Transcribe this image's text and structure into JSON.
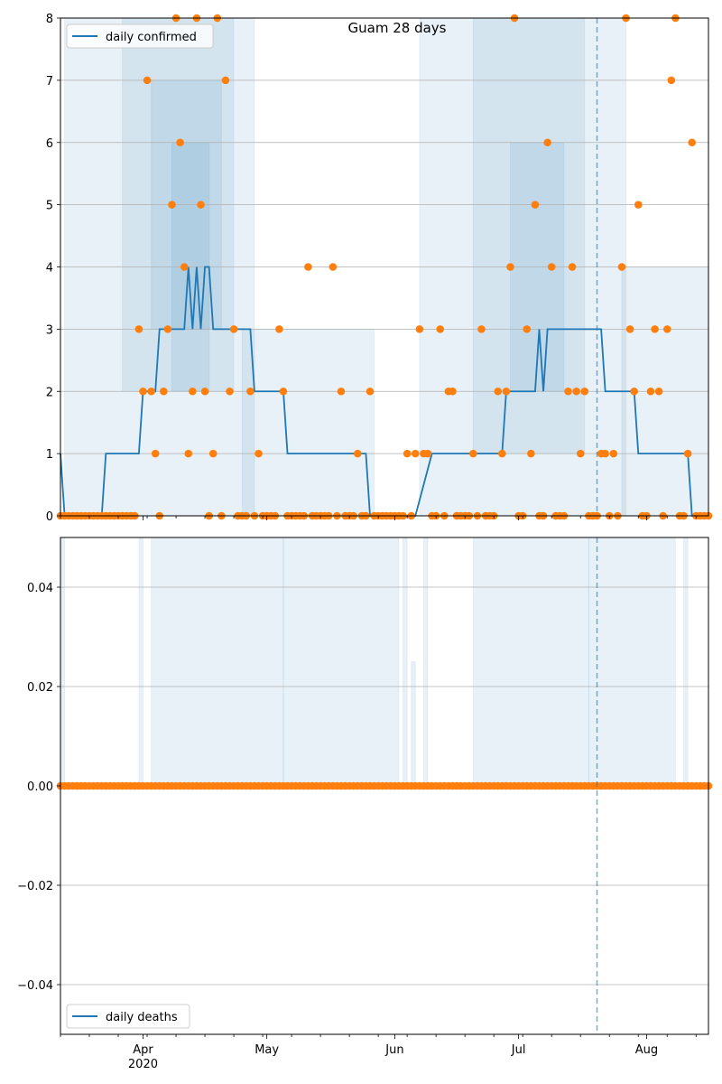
{
  "chart_data": [
    {
      "type": "line",
      "title": "Guam 28 days",
      "legend": {
        "label": "daily confirmed",
        "placement": "top-left"
      },
      "ylim": [
        0,
        8
      ],
      "yticks": [
        "0",
        "1",
        "2",
        "3",
        "4",
        "5",
        "6",
        "7",
        "8"
      ],
      "grid": true,
      "x_start": "2020-03-12",
      "x_end": "2020-08-16",
      "highlight_date": "2020-07-20",
      "colors": {
        "line": "#1f77b4",
        "points": "#ff7f0e",
        "band": "#1f77b4"
      },
      "series": [
        {
          "name": "daily confirmed",
          "kind": "line",
          "points": [
            [
              "2020-03-12",
              1
            ],
            [
              "2020-03-13",
              0
            ],
            [
              "2020-03-22",
              0
            ],
            [
              "2020-03-23",
              1
            ],
            [
              "2020-03-31",
              1
            ],
            [
              "2020-04-01",
              2
            ],
            [
              "2020-04-04",
              2
            ],
            [
              "2020-04-05",
              3
            ],
            [
              "2020-04-11",
              3
            ],
            [
              "2020-04-12",
              4
            ],
            [
              "2020-04-13",
              3
            ],
            [
              "2020-04-14",
              4
            ],
            [
              "2020-04-15",
              3
            ],
            [
              "2020-04-16",
              4
            ],
            [
              "2020-04-17",
              4
            ],
            [
              "2020-04-18",
              3
            ],
            [
              "2020-04-27",
              3
            ],
            [
              "2020-04-28",
              2
            ],
            [
              "2020-05-05",
              2
            ],
            [
              "2020-05-06",
              1
            ],
            [
              "2020-05-25",
              1
            ],
            [
              "2020-05-26",
              0
            ],
            [
              "2020-06-06",
              0
            ],
            [
              "2020-06-10",
              1
            ],
            [
              "2020-06-27",
              1
            ],
            [
              "2020-06-28",
              2
            ],
            [
              "2020-07-05",
              2
            ],
            [
              "2020-07-06",
              3
            ],
            [
              "2020-07-07",
              2
            ],
            [
              "2020-07-08",
              3
            ],
            [
              "2020-07-21",
              3
            ],
            [
              "2020-07-22",
              2
            ],
            [
              "2020-07-29",
              2
            ],
            [
              "2020-07-30",
              1
            ],
            [
              "2020-08-11",
              1
            ],
            [
              "2020-08-12",
              0
            ],
            [
              "2020-08-16",
              0
            ]
          ]
        },
        {
          "name": "",
          "kind": "points",
          "points": [
            [
              "2020-03-12",
              0
            ],
            [
              "2020-03-13",
              0
            ],
            [
              "2020-03-14",
              0
            ],
            [
              "2020-03-15",
              0
            ],
            [
              "2020-03-16",
              0
            ],
            [
              "2020-03-17",
              0
            ],
            [
              "2020-03-18",
              0
            ],
            [
              "2020-03-19",
              0
            ],
            [
              "2020-03-20",
              0
            ],
            [
              "2020-03-21",
              0
            ],
            [
              "2020-03-22",
              0
            ],
            [
              "2020-03-23",
              0
            ],
            [
              "2020-03-24",
              0
            ],
            [
              "2020-03-25",
              0
            ],
            [
              "2020-03-26",
              0
            ],
            [
              "2020-03-27",
              0
            ],
            [
              "2020-03-28",
              0
            ],
            [
              "2020-03-29",
              0
            ],
            [
              "2020-03-30",
              0
            ],
            [
              "2020-03-31",
              3
            ],
            [
              "2020-04-01",
              2
            ],
            [
              "2020-04-02",
              7
            ],
            [
              "2020-04-03",
              2
            ],
            [
              "2020-04-04",
              1
            ],
            [
              "2020-04-05",
              0
            ],
            [
              "2020-04-06",
              2
            ],
            [
              "2020-04-07",
              3
            ],
            [
              "2020-04-08",
              5
            ],
            [
              "2020-04-09",
              8
            ],
            [
              "2020-04-10",
              6
            ],
            [
              "2020-04-11",
              4
            ],
            [
              "2020-04-12",
              1
            ],
            [
              "2020-04-13",
              2
            ],
            [
              "2020-04-14",
              8
            ],
            [
              "2020-04-15",
              5
            ],
            [
              "2020-04-16",
              2
            ],
            [
              "2020-04-17",
              0
            ],
            [
              "2020-04-18",
              1
            ],
            [
              "2020-04-19",
              8
            ],
            [
              "2020-04-20",
              0
            ],
            [
              "2020-04-21",
              7
            ],
            [
              "2020-04-22",
              2
            ],
            [
              "2020-04-23",
              3
            ],
            [
              "2020-04-24",
              0
            ],
            [
              "2020-04-25",
              0
            ],
            [
              "2020-04-26",
              0
            ],
            [
              "2020-04-27",
              2
            ],
            [
              "2020-04-28",
              0
            ],
            [
              "2020-04-29",
              1
            ],
            [
              "2020-04-30",
              0
            ],
            [
              "2020-05-01",
              0
            ],
            [
              "2020-05-02",
              0
            ],
            [
              "2020-05-03",
              0
            ],
            [
              "2020-05-04",
              3
            ],
            [
              "2020-05-05",
              2
            ],
            [
              "2020-05-06",
              0
            ],
            [
              "2020-05-07",
              0
            ],
            [
              "2020-05-08",
              0
            ],
            [
              "2020-05-09",
              0
            ],
            [
              "2020-05-10",
              0
            ],
            [
              "2020-05-11",
              4
            ],
            [
              "2020-05-12",
              0
            ],
            [
              "2020-05-13",
              0
            ],
            [
              "2020-05-14",
              0
            ],
            [
              "2020-05-15",
              0
            ],
            [
              "2020-05-16",
              0
            ],
            [
              "2020-05-17",
              4
            ],
            [
              "2020-05-18",
              0
            ],
            [
              "2020-05-19",
              2
            ],
            [
              "2020-05-20",
              0
            ],
            [
              "2020-05-21",
              0
            ],
            [
              "2020-05-22",
              0
            ],
            [
              "2020-05-23",
              1
            ],
            [
              "2020-05-24",
              0
            ],
            [
              "2020-05-25",
              0
            ],
            [
              "2020-05-26",
              2
            ],
            [
              "2020-05-27",
              0
            ],
            [
              "2020-05-28",
              0
            ],
            [
              "2020-05-29",
              0
            ],
            [
              "2020-05-30",
              0
            ],
            [
              "2020-05-31",
              0
            ],
            [
              "2020-06-01",
              0
            ],
            [
              "2020-06-02",
              0
            ],
            [
              "2020-06-03",
              0
            ],
            [
              "2020-06-04",
              1
            ],
            [
              "2020-06-05",
              0
            ],
            [
              "2020-06-06",
              1
            ],
            [
              "2020-06-07",
              3
            ],
            [
              "2020-06-08",
              1
            ],
            [
              "2020-06-09",
              1
            ],
            [
              "2020-06-10",
              0
            ],
            [
              "2020-06-11",
              0
            ],
            [
              "2020-06-12",
              3
            ],
            [
              "2020-06-13",
              0
            ],
            [
              "2020-06-14",
              2
            ],
            [
              "2020-06-15",
              2
            ],
            [
              "2020-06-16",
              0
            ],
            [
              "2020-06-17",
              0
            ],
            [
              "2020-06-18",
              0
            ],
            [
              "2020-06-19",
              0
            ],
            [
              "2020-06-20",
              1
            ],
            [
              "2020-06-21",
              0
            ],
            [
              "2020-06-22",
              3
            ],
            [
              "2020-06-23",
              0
            ],
            [
              "2020-06-24",
              0
            ],
            [
              "2020-06-25",
              0
            ],
            [
              "2020-06-26",
              2
            ],
            [
              "2020-06-27",
              1
            ],
            [
              "2020-06-28",
              2
            ],
            [
              "2020-06-29",
              4
            ],
            [
              "2020-06-30",
              8
            ],
            [
              "2020-07-01",
              0
            ],
            [
              "2020-07-02",
              0
            ],
            [
              "2020-07-03",
              3
            ],
            [
              "2020-07-04",
              1
            ],
            [
              "2020-07-05",
              5
            ],
            [
              "2020-07-06",
              0
            ],
            [
              "2020-07-07",
              0
            ],
            [
              "2020-07-08",
              6
            ],
            [
              "2020-07-09",
              4
            ],
            [
              "2020-07-10",
              0
            ],
            [
              "2020-07-11",
              0
            ],
            [
              "2020-07-12",
              0
            ],
            [
              "2020-07-13",
              2
            ],
            [
              "2020-07-14",
              4
            ],
            [
              "2020-07-15",
              2
            ],
            [
              "2020-07-16",
              1
            ],
            [
              "2020-07-17",
              2
            ],
            [
              "2020-07-18",
              0
            ],
            [
              "2020-07-19",
              0
            ],
            [
              "2020-07-20",
              0
            ],
            [
              "2020-07-21",
              1
            ],
            [
              "2020-07-22",
              1
            ],
            [
              "2020-07-23",
              0
            ],
            [
              "2020-07-24",
              1
            ],
            [
              "2020-07-25",
              0
            ],
            [
              "2020-07-26",
              4
            ],
            [
              "2020-07-27",
              8
            ],
            [
              "2020-07-28",
              3
            ],
            [
              "2020-07-29",
              2
            ],
            [
              "2020-07-30",
              5
            ],
            [
              "2020-07-31",
              0
            ],
            [
              "2020-08-01",
              0
            ],
            [
              "2020-08-02",
              2
            ],
            [
              "2020-08-03",
              3
            ],
            [
              "2020-08-04",
              2
            ],
            [
              "2020-08-05",
              0
            ],
            [
              "2020-08-06",
              3
            ],
            [
              "2020-08-07",
              7
            ],
            [
              "2020-08-08",
              8
            ],
            [
              "2020-08-09",
              0
            ],
            [
              "2020-08-10",
              0
            ],
            [
              "2020-08-11",
              1
            ],
            [
              "2020-08-12",
              6
            ],
            [
              "2020-08-13",
              0
            ],
            [
              "2020-08-14",
              0
            ],
            [
              "2020-08-15",
              0
            ],
            [
              "2020-08-16",
              0
            ]
          ]
        }
      ],
      "bands": [
        {
          "from": "2020-03-13",
          "to": "2020-04-28",
          "low": 0,
          "high": 8
        },
        {
          "from": "2020-03-27",
          "to": "2020-04-23",
          "low": 2,
          "high": 8
        },
        {
          "from": "2020-04-03",
          "to": "2020-04-20",
          "low": 3,
          "high": 7
        },
        {
          "from": "2020-04-08",
          "to": "2020-04-17",
          "low": 2,
          "high": 6
        },
        {
          "from": "2020-04-25",
          "to": "2020-05-27",
          "low": 0,
          "high": 3
        },
        {
          "from": "2020-06-07",
          "to": "2020-07-27",
          "low": 0,
          "high": 8
        },
        {
          "from": "2020-06-20",
          "to": "2020-07-17",
          "low": 1,
          "high": 8
        },
        {
          "from": "2020-06-29",
          "to": "2020-07-12",
          "low": 2,
          "high": 6
        },
        {
          "from": "2020-07-26",
          "to": "2020-08-16",
          "low": 0,
          "high": 4
        }
      ]
    },
    {
      "type": "line",
      "title": "",
      "legend": {
        "label": "daily deaths",
        "placement": "bottom-left"
      },
      "ylim": [
        -0.05,
        0.05
      ],
      "yticks": [
        "−0.04",
        "−0.02",
        "0.00",
        "0.02",
        "0.04"
      ],
      "ytick_values": [
        -0.04,
        -0.02,
        0.0,
        0.02,
        0.04
      ],
      "grid": true,
      "x_start": "2020-03-12",
      "x_end": "2020-08-16",
      "highlight_date": "2020-07-20",
      "colors": {
        "line": "#1f77b4",
        "points": "#ff7f0e",
        "band": "#1f77b4"
      },
      "series": [
        {
          "name": "daily deaths",
          "kind": "line",
          "points": [
            [
              "2020-03-12",
              0
            ],
            [
              "2020-08-16",
              0
            ]
          ]
        },
        {
          "name": "",
          "kind": "points",
          "all_zero_from": "2020-03-12",
          "all_zero_to": "2020-08-16"
        }
      ],
      "bands": [
        {
          "from": "2020-03-12",
          "to": "2020-03-13",
          "low": 0,
          "high": 0.05
        },
        {
          "from": "2020-03-31",
          "to": "2020-04-01",
          "low": 0,
          "high": 0.05
        },
        {
          "from": "2020-04-03",
          "to": "2020-05-05",
          "low": 0,
          "high": 0.05
        },
        {
          "from": "2020-05-05",
          "to": "2020-06-02",
          "low": 0,
          "high": 0.05
        },
        {
          "from": "2020-06-03",
          "to": "2020-06-04",
          "low": 0,
          "high": 0.05
        },
        {
          "from": "2020-06-05",
          "to": "2020-06-06",
          "low": 0,
          "high": 0.025
        },
        {
          "from": "2020-06-08",
          "to": "2020-06-09",
          "low": 0,
          "high": 0.05
        },
        {
          "from": "2020-06-20",
          "to": "2020-07-18",
          "low": 0,
          "high": 0.05
        },
        {
          "from": "2020-07-18",
          "to": "2020-08-08",
          "low": 0,
          "high": 0.05
        },
        {
          "from": "2020-08-10",
          "to": "2020-08-11",
          "low": 0,
          "high": 0.05
        }
      ]
    }
  ],
  "x_axis": {
    "month_labels": [
      {
        "date": "2020-04-01",
        "label": "Apr"
      },
      {
        "date": "2020-05-01",
        "label": "May"
      },
      {
        "date": "2020-06-01",
        "label": "Jun"
      },
      {
        "date": "2020-07-01",
        "label": "Jul"
      },
      {
        "date": "2020-08-01",
        "label": "Aug"
      }
    ],
    "year_label": "2020"
  }
}
